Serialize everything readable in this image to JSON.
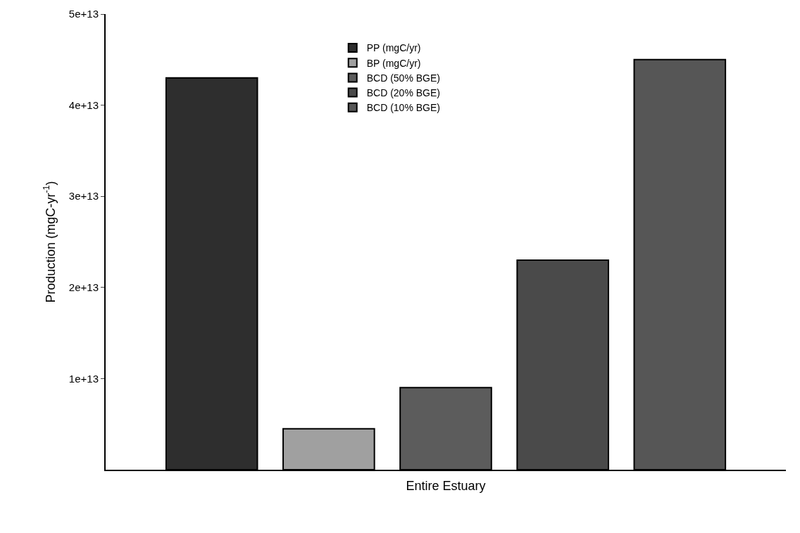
{
  "chart_data": {
    "type": "bar",
    "xlabel": "Entire Estuary",
    "ylabel": "Production (mgC-yr$^{-1}$)",
    "categories": [
      null
    ],
    "series": [
      {
        "name": "PP (mgC/yr)",
        "color": "#2e2e2e",
        "values": [
          43000000000000.0
        ]
      },
      {
        "name": "BP (mgC/yr)",
        "color": "#a0a0a0",
        "values": [
          4500000000000.0
        ]
      },
      {
        "name": "BCD (50% BGE)",
        "color": "#5c5c5c",
        "values": [
          9000000000000.0
        ]
      },
      {
        "name": "BCD (20% BGE)",
        "color": "#4a4a4a",
        "values": [
          23000000000000.0
        ]
      },
      {
        "name": "BCD (10% BGE)",
        "color": "#565656",
        "values": [
          45000000000000.0
        ]
      }
    ],
    "ylim": [
      0,
      50000000000000.0
    ],
    "yticks": [
      {
        "value": 10000000000000.0,
        "label": "1e+13"
      },
      {
        "value": 20000000000000.0,
        "label": "2e+13"
      },
      {
        "value": 30000000000000.0,
        "label": "3e+13"
      },
      {
        "value": 40000000000000.0,
        "label": "4e+13"
      },
      {
        "value": 50000000000000.0,
        "label": "5e+13"
      }
    ],
    "tick_labels": "y",
    "legend": "top"
  }
}
